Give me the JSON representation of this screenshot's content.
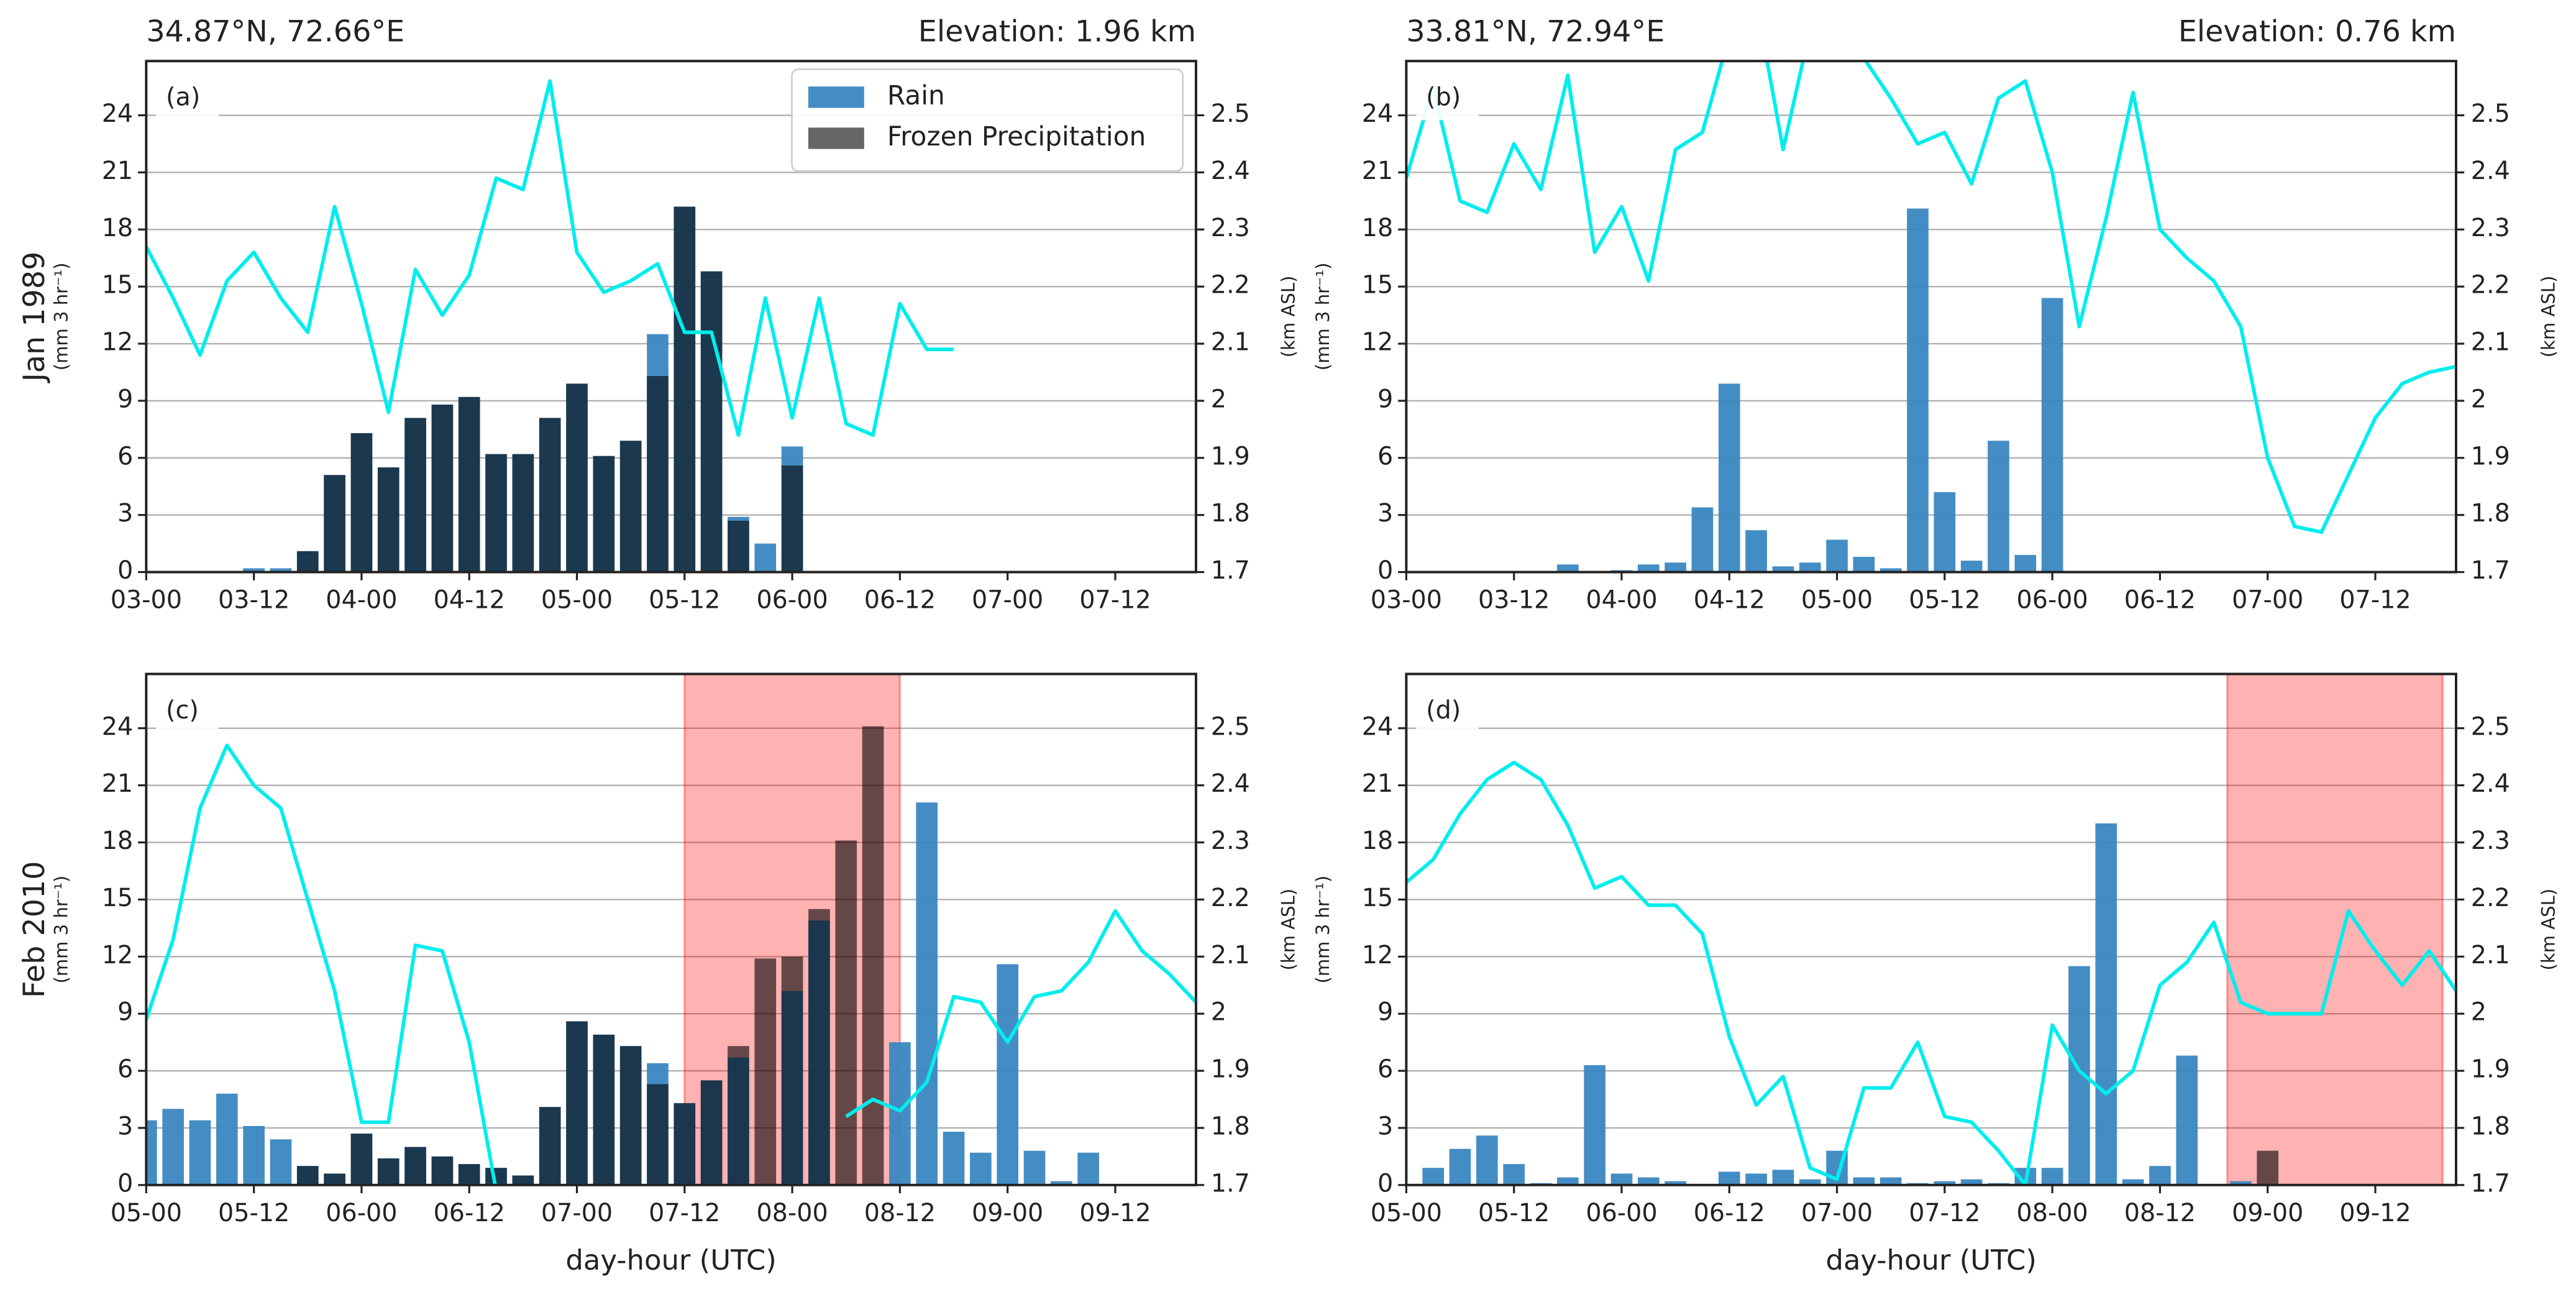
{
  "chart_data": [
    {
      "type": "bar",
      "title": "34.87°N, 72.66°E",
      "title_right": "Elevation: 1.96 km",
      "panel_label": "(a)",
      "row_label": "Jan 1989",
      "ylabel": "(mm 3 hr⁻¹)",
      "y2label": "(km ASL)",
      "legend": "upper right",
      "grid": true,
      "categories": [
        "03-00",
        null,
        null,
        null,
        "03-12",
        null,
        null,
        null,
        "04-00",
        null,
        null,
        null,
        "04-12",
        null,
        null,
        null,
        "05-00",
        null,
        null,
        null,
        "05-12",
        null,
        null,
        null,
        "06-00",
        null,
        null,
        null,
        "06-12",
        null,
        null,
        null,
        "07-00",
        null,
        null,
        null,
        "07-12",
        null,
        null,
        null
      ],
      "ylim": [
        0,
        26.85
      ],
      "yticks": [
        0,
        3,
        6,
        9,
        12,
        15,
        18,
        21,
        24
      ],
      "y2lim": [
        1.7,
        2.595
      ],
      "y2ticks": [
        1.7,
        1.8,
        1.9,
        2.0,
        2.1,
        2.2,
        2.3,
        2.4,
        2.5
      ],
      "series": [
        {
          "name": "Rain",
          "type": "bar",
          "color": "#3a87c1",
          "values": [
            0,
            0,
            0,
            0,
            0.2,
            0.2,
            1.1,
            5.1,
            7.3,
            5.5,
            8.1,
            8.8,
            9.2,
            6.2,
            6.2,
            8.1,
            9.9,
            6.1,
            6.9,
            12.5,
            19.2,
            15.8,
            2.9,
            1.5,
            6.6,
            0,
            0,
            0,
            0,
            0,
            0,
            0,
            0,
            0,
            0,
            0,
            0,
            0,
            0,
            0
          ]
        },
        {
          "name": "Frozen Precipitation",
          "type": "bar",
          "color": "#000000",
          "opacity": 0.6,
          "values": [
            0,
            0,
            0,
            0,
            0,
            0,
            1.1,
            5.1,
            7.3,
            5.5,
            8.1,
            8.8,
            9.2,
            6.2,
            6.2,
            8.1,
            9.9,
            6.1,
            6.9,
            10.3,
            19.2,
            15.8,
            2.7,
            0,
            5.6,
            0,
            0,
            0,
            0,
            0,
            0,
            0,
            0,
            0,
            0,
            0,
            0,
            0,
            0,
            0
          ]
        },
        {
          "type": "line",
          "axis": "y2",
          "color": "#00eded",
          "values": [
            2.27,
            2.18,
            2.08,
            2.21,
            2.26,
            2.18,
            2.12,
            2.34,
            2.17,
            1.98,
            2.23,
            2.15,
            2.22,
            2.39,
            2.37,
            2.56,
            2.26,
            2.19,
            2.21,
            2.24,
            2.12,
            2.12,
            1.94,
            2.18,
            1.97,
            2.18,
            1.96,
            1.94,
            2.17,
            2.09,
            2.09,
            null,
            null,
            null,
            null,
            null,
            null,
            null,
            null,
            null
          ]
        }
      ]
    },
    {
      "type": "bar",
      "title": "33.81°N, 72.94°E",
      "title_right": "Elevation: 0.76 km",
      "panel_label": "(b)",
      "ylabel": "(mm 3 hr⁻¹)",
      "y2label": "(km ASL)",
      "grid": true,
      "categories": [
        "03-00",
        null,
        null,
        null,
        "03-12",
        null,
        null,
        null,
        "04-00",
        null,
        null,
        null,
        "04-12",
        null,
        null,
        null,
        "05-00",
        null,
        null,
        null,
        "05-12",
        null,
        null,
        null,
        "06-00",
        null,
        null,
        null,
        "06-12",
        null,
        null,
        null,
        "07-00",
        null,
        null,
        null,
        "07-12",
        null,
        null,
        null
      ],
      "ylim": [
        0,
        26.85
      ],
      "yticks": [
        0,
        3,
        6,
        9,
        12,
        15,
        18,
        21,
        24
      ],
      "y2lim": [
        1.7,
        2.595
      ],
      "y2ticks": [
        1.7,
        1.8,
        1.9,
        2.0,
        2.1,
        2.2,
        2.3,
        2.4,
        2.5
      ],
      "series": [
        {
          "type": "bar",
          "color": "#3a87c1",
          "values": [
            0,
            0,
            0,
            0,
            0,
            0,
            0.4,
            0,
            0.1,
            0.4,
            0.5,
            3.4,
            9.9,
            2.2,
            0.3,
            0.5,
            1.7,
            0.8,
            0.2,
            19.1,
            4.2,
            0.6,
            6.9,
            0.9,
            14.4,
            0,
            0,
            0,
            0,
            0,
            0,
            0,
            0,
            0,
            0,
            0,
            0,
            0,
            0,
            0
          ]
        },
        {
          "type": "bar",
          "color": "#000000",
          "opacity": 0.6,
          "values": [
            0,
            0,
            0,
            0,
            0,
            0,
            0,
            0,
            0,
            0,
            0,
            0,
            0,
            0,
            0,
            0,
            0,
            0,
            0,
            0,
            0,
            0,
            0,
            0,
            0,
            0,
            0,
            0,
            0,
            0,
            0,
            0,
            0,
            0,
            0,
            0,
            0,
            0,
            0,
            0
          ]
        },
        {
          "type": "line",
          "axis": "y2",
          "color": "#00eded",
          "values": [
            2.39,
            2.55,
            2.35,
            2.33,
            2.45,
            2.37,
            2.57,
            2.26,
            2.34,
            2.21,
            2.44,
            2.47,
            2.64,
            2.7,
            2.44,
            2.65,
            2.62,
            2.6,
            2.53,
            2.45,
            2.47,
            2.38,
            2.53,
            2.56,
            2.4,
            2.13,
            2.32,
            2.54,
            2.3,
            2.25,
            2.21,
            2.13,
            1.9,
            1.78,
            1.77,
            1.87,
            1.97,
            2.03,
            2.05,
            2.06
          ]
        }
      ]
    },
    {
      "type": "bar",
      "panel_label": "(c)",
      "row_label": "Feb 2010",
      "xlabel": "day-hour (UTC)",
      "ylabel": "(mm 3 hr⁻¹)",
      "y2label": "(km ASL)",
      "grid": true,
      "shade": {
        "from": 20,
        "to": 28,
        "color": "#ff0000"
      },
      "categories": [
        "05-00",
        null,
        null,
        null,
        "05-12",
        null,
        null,
        null,
        "06-00",
        null,
        null,
        null,
        "06-12",
        null,
        null,
        null,
        "07-00",
        null,
        null,
        null,
        "07-12",
        null,
        null,
        null,
        "08-00",
        null,
        null,
        null,
        "08-12",
        null,
        null,
        null,
        "09-00",
        null,
        null,
        null,
        "09-12",
        null,
        null,
        null
      ],
      "ylim": [
        0,
        26.85
      ],
      "yticks": [
        0,
        3,
        6,
        9,
        12,
        15,
        18,
        21,
        24
      ],
      "y2lim": [
        1.7,
        2.595
      ],
      "y2ticks": [
        1.7,
        1.8,
        1.9,
        2.0,
        2.1,
        2.2,
        2.3,
        2.4,
        2.5
      ],
      "series": [
        {
          "type": "bar",
          "color": "#3a87c1",
          "values": [
            3.4,
            4.0,
            3.4,
            4.8,
            3.1,
            2.4,
            1.0,
            0.6,
            2.7,
            1.4,
            2.0,
            1.5,
            1.1,
            0.9,
            0.5,
            4.1,
            8.6,
            7.9,
            7.3,
            6.4,
            4.3,
            5.5,
            6.7,
            0,
            10.2,
            13.9,
            0,
            0,
            7.5,
            20.1,
            2.8,
            1.7,
            11.6,
            1.8,
            0.2,
            1.7,
            0,
            0,
            0,
            0
          ]
        },
        {
          "type": "bar",
          "color": "#000000",
          "opacity": 0.6,
          "values": [
            0,
            0,
            0,
            0,
            0,
            0,
            1.0,
            0.6,
            2.7,
            1.4,
            2.0,
            1.5,
            1.1,
            0.9,
            0.5,
            4.1,
            8.6,
            7.9,
            7.3,
            5.3,
            4.3,
            5.5,
            7.3,
            11.9,
            12.0,
            14.5,
            18.1,
            24.1,
            0,
            0,
            0,
            0,
            0,
            0,
            0,
            0,
            0,
            0,
            0,
            0
          ]
        },
        {
          "type": "line",
          "axis": "y2",
          "color": "#00eded",
          "values": [
            1.99,
            2.13,
            2.36,
            2.47,
            2.4,
            2.36,
            2.2,
            2.04,
            1.81,
            1.81,
            2.12,
            2.11,
            1.95,
            1.69,
            null,
            null,
            null,
            null,
            null,
            null,
            null,
            null,
            null,
            null,
            null,
            null,
            1.82,
            1.85,
            1.83,
            1.88,
            2.03,
            2.02,
            1.95,
            2.03,
            2.04,
            2.09,
            2.18,
            2.11,
            2.07,
            2.02
          ]
        }
      ]
    },
    {
      "type": "bar",
      "panel_label": "(d)",
      "xlabel": "day-hour (UTC)",
      "ylabel": "(mm 3 hr⁻¹)",
      "y2label": "(km ASL)",
      "grid": true,
      "shade": {
        "from": 30.5,
        "to": 38.5,
        "color": "#ff0000"
      },
      "categories": [
        "05-00",
        null,
        null,
        null,
        "05-12",
        null,
        null,
        null,
        "06-00",
        null,
        null,
        null,
        "06-12",
        null,
        null,
        null,
        "07-00",
        null,
        null,
        null,
        "07-12",
        null,
        null,
        null,
        "08-00",
        null,
        null,
        null,
        "08-12",
        null,
        null,
        null,
        "09-00",
        null,
        null,
        null,
        "09-12",
        null,
        null,
        null
      ],
      "ylim": [
        0,
        26.85
      ],
      "yticks": [
        0,
        3,
        6,
        9,
        12,
        15,
        18,
        21,
        24
      ],
      "y2lim": [
        1.7,
        2.595
      ],
      "y2ticks": [
        1.7,
        1.8,
        1.9,
        2.0,
        2.1,
        2.2,
        2.3,
        2.4,
        2.5
      ],
      "series": [
        {
          "type": "bar",
          "color": "#3a87c1",
          "values": [
            0,
            0.9,
            1.9,
            2.6,
            1.1,
            0.1,
            0.4,
            6.3,
            0.6,
            0.4,
            0.2,
            0,
            0.7,
            0.6,
            0.8,
            0.3,
            1.8,
            0.4,
            0.4,
            0.1,
            0.2,
            0.3,
            0.1,
            0.9,
            0.9,
            11.5,
            19.0,
            0.3,
            1.0,
            6.8,
            0,
            0.2,
            0,
            0,
            0,
            0,
            0,
            0,
            0,
            0
          ]
        },
        {
          "type": "bar",
          "color": "#000000",
          "opacity": 0.6,
          "values": [
            0,
            0,
            0,
            0,
            0,
            0,
            0,
            0,
            0,
            0,
            0,
            0,
            0,
            0,
            0,
            0,
            0,
            0,
            0,
            0,
            0,
            0,
            0,
            0,
            0,
            0,
            0,
            0,
            0,
            0,
            0,
            0,
            1.8,
            0,
            0,
            0,
            0,
            0,
            0,
            0
          ]
        },
        {
          "type": "line",
          "axis": "y2",
          "color": "#00eded",
          "values": [
            2.23,
            2.27,
            2.35,
            2.41,
            2.44,
            2.41,
            2.33,
            2.22,
            2.24,
            2.19,
            2.19,
            2.14,
            1.96,
            1.84,
            1.89,
            1.73,
            1.71,
            1.87,
            1.87,
            1.95,
            1.82,
            1.81,
            1.76,
            1.7,
            1.98,
            1.9,
            1.86,
            1.9,
            2.05,
            2.09,
            2.16,
            2.02,
            2.0,
            2.0,
            2.0,
            2.18,
            2.11,
            2.05,
            2.11,
            2.04
          ]
        }
      ]
    }
  ]
}
